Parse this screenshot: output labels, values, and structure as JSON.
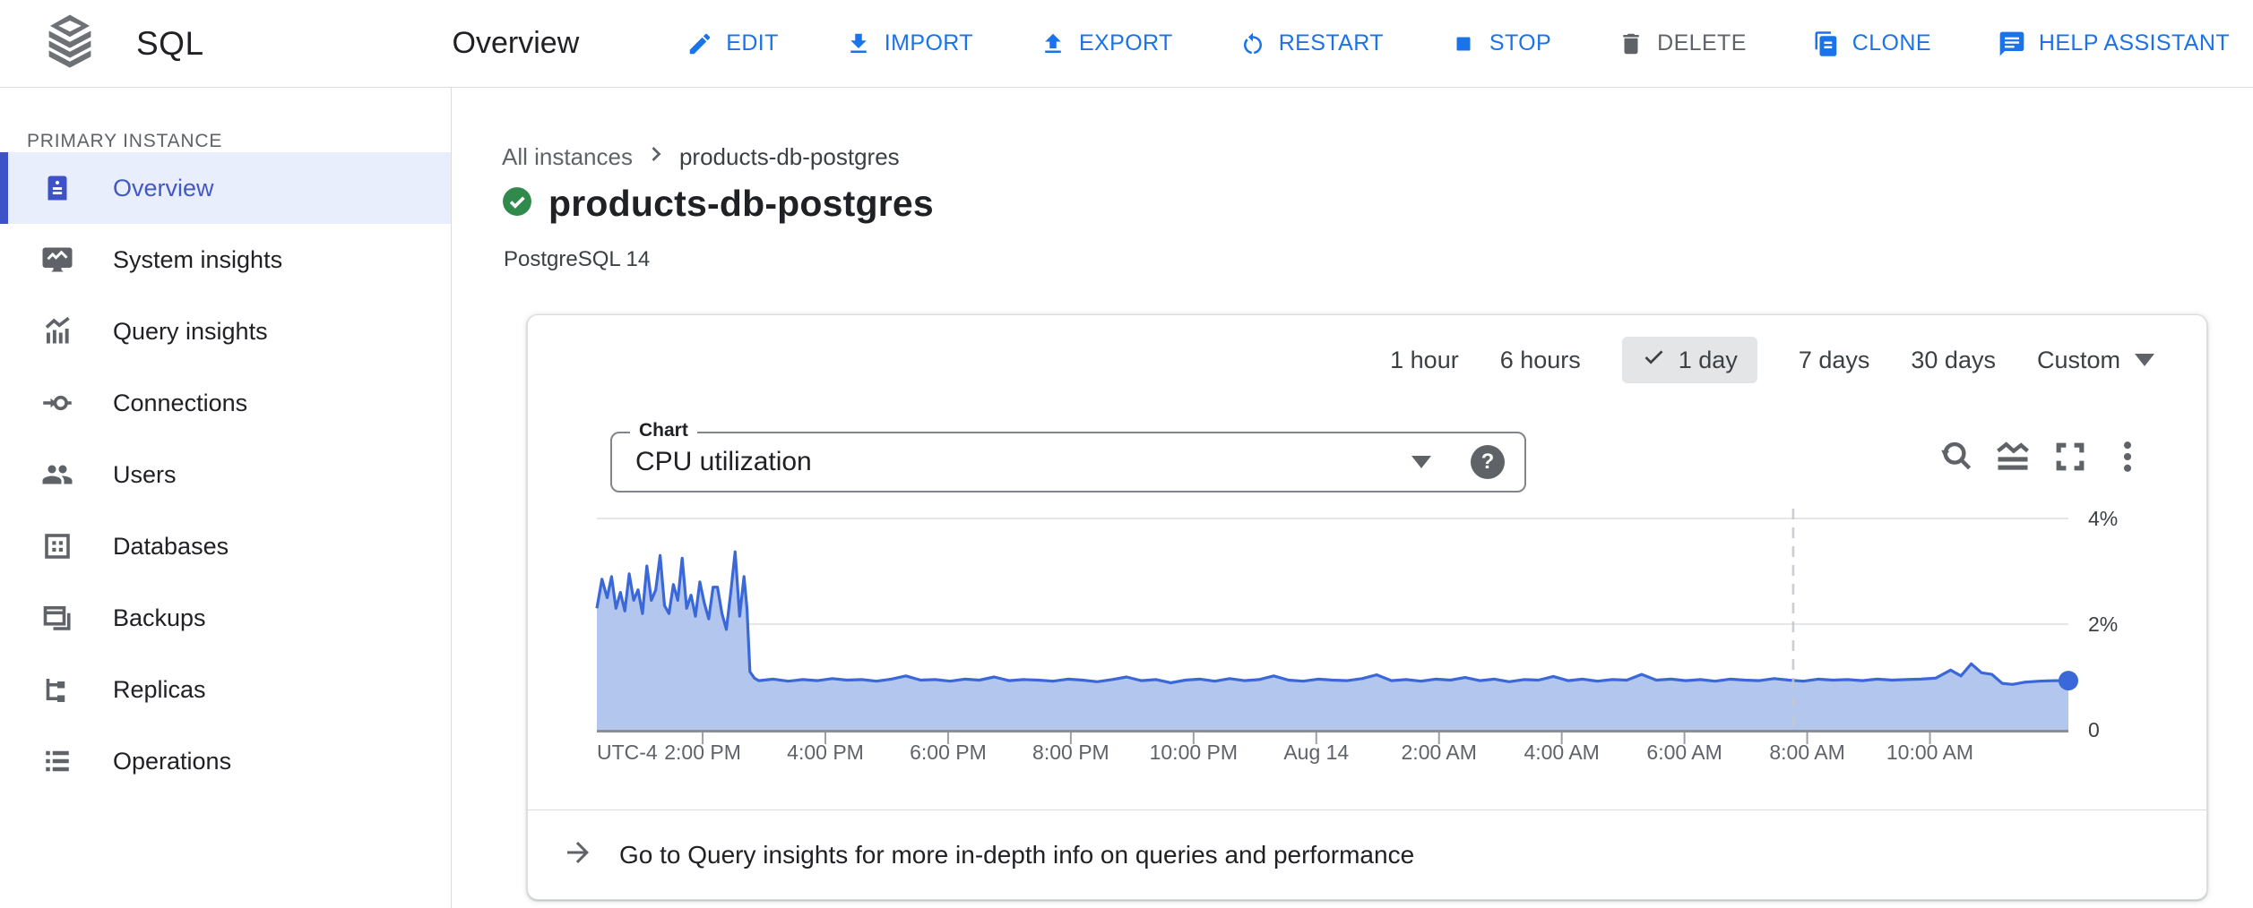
{
  "header": {
    "product": "SQL",
    "page_title": "Overview",
    "actions": [
      {
        "id": "edit",
        "label": "EDIT"
      },
      {
        "id": "import",
        "label": "IMPORT"
      },
      {
        "id": "export",
        "label": "EXPORT"
      },
      {
        "id": "restart",
        "label": "RESTART"
      },
      {
        "id": "stop",
        "label": "STOP"
      },
      {
        "id": "delete",
        "label": "DELETE"
      },
      {
        "id": "clone",
        "label": "CLONE"
      },
      {
        "id": "help_assistant",
        "label": "HELP ASSISTANT"
      }
    ]
  },
  "sidebar": {
    "section": "PRIMARY INSTANCE",
    "items": [
      {
        "label": "Overview",
        "selected": true
      },
      {
        "label": "System insights",
        "selected": false
      },
      {
        "label": "Query insights",
        "selected": false
      },
      {
        "label": "Connections",
        "selected": false
      },
      {
        "label": "Users",
        "selected": false
      },
      {
        "label": "Databases",
        "selected": false
      },
      {
        "label": "Backups",
        "selected": false
      },
      {
        "label": "Replicas",
        "selected": false
      },
      {
        "label": "Operations",
        "selected": false
      }
    ]
  },
  "breadcrumb": {
    "parent": "All instances",
    "current": "products-db-postgres"
  },
  "instance": {
    "name": "products-db-postgres",
    "status": "healthy",
    "version": "PostgreSQL 14"
  },
  "time_ranges": {
    "options": [
      "1 hour",
      "6 hours",
      "1 day",
      "7 days",
      "30 days"
    ],
    "selected": "1 day",
    "custom_label": "Custom"
  },
  "chart_controls": {
    "label": "Chart",
    "selected_metric": "CPU utilization",
    "help": "?"
  },
  "footer": {
    "text": "Go to Query insights for more in-depth info on queries and performance"
  },
  "colors": {
    "accent_blue": "#1a73e8",
    "selected_nav": "#4458c4",
    "status_green": "#2f8a4c",
    "chart_line": "#3a68d8",
    "chart_fill": "#b3c6ee",
    "border": "#dadce0",
    "gray_icon": "#5f6368"
  },
  "chart_data": {
    "type": "area",
    "title": "CPU utilization",
    "unit": "%",
    "time_range_selected": "1 day",
    "timezone_label": "UTC-4",
    "ylim": [
      0,
      4.3
    ],
    "grid": true,
    "legend": "none",
    "y_ticks": [
      {
        "label": "4%",
        "value": 4
      },
      {
        "label": "2%",
        "value": 2
      },
      {
        "label": "0",
        "value": 0
      }
    ],
    "x_ticks": [
      {
        "label": "UTC-4",
        "f": 0.0,
        "tick": false,
        "align": "start"
      },
      {
        "label": "2:00 PM",
        "f": 0.0719
      },
      {
        "label": "4:00 PM",
        "f": 0.1553
      },
      {
        "label": "6:00 PM",
        "f": 0.2387
      },
      {
        "label": "8:00 PM",
        "f": 0.3221
      },
      {
        "label": "10:00 PM",
        "f": 0.4055
      },
      {
        "label": "Aug 14",
        "f": 0.4889
      },
      {
        "label": "2:00 AM",
        "f": 0.5723
      },
      {
        "label": "4:00 AM",
        "f": 0.6557
      },
      {
        "label": "6:00 AM",
        "f": 0.7391
      },
      {
        "label": "8:00 AM",
        "f": 0.8225
      },
      {
        "label": "10:00 AM",
        "f": 0.9059
      }
    ],
    "dashed_line_f": 0.813,
    "end_dot": true,
    "line_color": "#3a68d8",
    "fill_color": "#b3c6ee",
    "series": [
      {
        "name": "CPU utilization",
        "points": [
          [
            0.0,
            2.3
          ],
          [
            0.0035,
            2.85
          ],
          [
            0.007,
            2.5
          ],
          [
            0.01,
            2.9
          ],
          [
            0.013,
            2.3
          ],
          [
            0.016,
            2.6
          ],
          [
            0.019,
            2.25
          ],
          [
            0.022,
            2.95
          ],
          [
            0.025,
            2.45
          ],
          [
            0.028,
            2.65
          ],
          [
            0.031,
            2.2
          ],
          [
            0.034,
            3.1
          ],
          [
            0.037,
            2.45
          ],
          [
            0.04,
            2.65
          ],
          [
            0.043,
            3.3
          ],
          [
            0.046,
            2.35
          ],
          [
            0.049,
            2.2
          ],
          [
            0.052,
            2.75
          ],
          [
            0.055,
            2.45
          ],
          [
            0.058,
            3.25
          ],
          [
            0.061,
            2.3
          ],
          [
            0.064,
            2.55
          ],
          [
            0.067,
            2.15
          ],
          [
            0.07,
            2.8
          ],
          [
            0.073,
            2.4
          ],
          [
            0.076,
            2.1
          ],
          [
            0.079,
            2.7
          ],
          [
            0.082,
            2.7
          ],
          [
            0.085,
            2.2
          ],
          [
            0.088,
            1.9
          ],
          [
            0.091,
            2.6
          ],
          [
            0.094,
            3.37
          ],
          [
            0.097,
            2.15
          ],
          [
            0.1,
            2.9
          ],
          [
            0.102,
            2.3
          ],
          [
            0.104,
            1.1
          ],
          [
            0.107,
            0.98
          ],
          [
            0.11,
            0.93
          ],
          [
            0.12,
            0.96
          ],
          [
            0.13,
            0.92
          ],
          [
            0.14,
            0.95
          ],
          [
            0.15,
            0.93
          ],
          [
            0.16,
            0.97
          ],
          [
            0.17,
            0.94
          ],
          [
            0.18,
            0.95
          ],
          [
            0.19,
            0.92
          ],
          [
            0.2,
            0.96
          ],
          [
            0.21,
            1.02
          ],
          [
            0.22,
            0.94
          ],
          [
            0.23,
            0.95
          ],
          [
            0.24,
            0.92
          ],
          [
            0.25,
            0.96
          ],
          [
            0.26,
            0.94
          ],
          [
            0.27,
            1.0
          ],
          [
            0.28,
            0.93
          ],
          [
            0.29,
            0.95
          ],
          [
            0.3,
            0.94
          ],
          [
            0.31,
            0.92
          ],
          [
            0.32,
            0.96
          ],
          [
            0.33,
            0.94
          ],
          [
            0.34,
            0.91
          ],
          [
            0.35,
            0.95
          ],
          [
            0.36,
            1.0
          ],
          [
            0.37,
            0.93
          ],
          [
            0.38,
            0.95
          ],
          [
            0.39,
            0.89
          ],
          [
            0.4,
            0.94
          ],
          [
            0.41,
            0.96
          ],
          [
            0.42,
            0.92
          ],
          [
            0.43,
            0.97
          ],
          [
            0.44,
            0.93
          ],
          [
            0.45,
            0.95
          ],
          [
            0.46,
            1.02
          ],
          [
            0.47,
            0.94
          ],
          [
            0.48,
            0.92
          ],
          [
            0.49,
            0.96
          ],
          [
            0.5,
            0.94
          ],
          [
            0.51,
            0.93
          ],
          [
            0.52,
            0.97
          ],
          [
            0.53,
            1.04
          ],
          [
            0.54,
            0.93
          ],
          [
            0.55,
            0.95
          ],
          [
            0.56,
            0.92
          ],
          [
            0.57,
            0.96
          ],
          [
            0.58,
            0.94
          ],
          [
            0.59,
            0.99
          ],
          [
            0.6,
            0.93
          ],
          [
            0.61,
            0.96
          ],
          [
            0.62,
            0.91
          ],
          [
            0.63,
            0.95
          ],
          [
            0.64,
            0.94
          ],
          [
            0.65,
            1.01
          ],
          [
            0.66,
            0.93
          ],
          [
            0.67,
            0.96
          ],
          [
            0.68,
            0.92
          ],
          [
            0.69,
            0.95
          ],
          [
            0.7,
            0.94
          ],
          [
            0.71,
            1.05
          ],
          [
            0.72,
            0.94
          ],
          [
            0.73,
            0.96
          ],
          [
            0.74,
            0.93
          ],
          [
            0.75,
            0.95
          ],
          [
            0.76,
            0.92
          ],
          [
            0.77,
            0.96
          ],
          [
            0.78,
            0.94
          ],
          [
            0.79,
            0.93
          ],
          [
            0.8,
            0.97
          ],
          [
            0.81,
            0.94
          ],
          [
            0.82,
            0.92
          ],
          [
            0.83,
            0.96
          ],
          [
            0.84,
            0.94
          ],
          [
            0.85,
            0.95
          ],
          [
            0.86,
            0.93
          ],
          [
            0.87,
            0.96
          ],
          [
            0.88,
            0.94
          ],
          [
            0.89,
            0.95
          ],
          [
            0.9,
            0.96
          ],
          [
            0.91,
            0.98
          ],
          [
            0.92,
            1.13
          ],
          [
            0.927,
            1.02
          ],
          [
            0.934,
            1.25
          ],
          [
            0.941,
            1.08
          ],
          [
            0.948,
            1.05
          ],
          [
            0.955,
            0.88
          ],
          [
            0.962,
            0.86
          ],
          [
            0.97,
            0.9
          ],
          [
            0.98,
            0.92
          ],
          [
            0.99,
            0.93
          ],
          [
            1.0,
            0.93
          ]
        ]
      }
    ]
  }
}
